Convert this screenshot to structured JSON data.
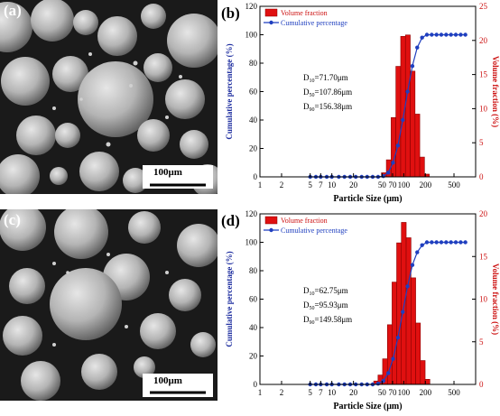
{
  "panels": {
    "a": {
      "letter": "(a)",
      "scale_bar": "100μm"
    },
    "c": {
      "letter": "(c)",
      "scale_bar": "100μm"
    }
  },
  "colors": {
    "bar": "#e01010",
    "line": "#1f3fbf",
    "left_axis": "#1f2fa0",
    "right_axis": "#cc1010"
  },
  "chart_data": [
    {
      "panel": "(b)",
      "type": "bar+line",
      "xlabel": "Particle Size (μm)",
      "ylabel_left": "Cumulative percentage (%)",
      "ylabel_right": "Volume fraction (%)",
      "x_scale": "log",
      "x_ticks": [
        1,
        2,
        5,
        7,
        10,
        20,
        50,
        70,
        100,
        200,
        500
      ],
      "x_tick_labels": [
        "1",
        "2",
        "5",
        "7",
        "10",
        "20",
        "50",
        "70",
        "100",
        "200",
        "500"
      ],
      "xlim": [
        1,
        1000
      ],
      "ylim_left": [
        0,
        120
      ],
      "ylim_right": [
        0,
        25
      ],
      "y_left_ticks": [
        0,
        20,
        40,
        60,
        80,
        100,
        120
      ],
      "y_right_ticks": [
        0,
        5,
        10,
        15,
        20,
        25
      ],
      "legend": [
        "Volume fraction",
        "Cumulative percentage"
      ],
      "annotations": [
        {
          "label": "D",
          "sub": "10",
          "value": "=71.70μm"
        },
        {
          "label": "D",
          "sub": "50",
          "value": "=107.86μm"
        },
        {
          "label": "D",
          "sub": "90",
          "value": "=156.38μm"
        }
      ],
      "bars": [
        {
          "x": 53,
          "value": 0.6
        },
        {
          "x": 62,
          "value": 2.5
        },
        {
          "x": 72,
          "value": 8.7
        },
        {
          "x": 84,
          "value": 16.2
        },
        {
          "x": 98,
          "value": 20.6
        },
        {
          "x": 114,
          "value": 20.8
        },
        {
          "x": 133,
          "value": 15.5
        },
        {
          "x": 155,
          "value": 9.2
        },
        {
          "x": 180,
          "value": 2.9
        },
        {
          "x": 210,
          "value": 0.4
        }
      ],
      "series": [
        {
          "name": "Cumulative percentage",
          "x": [
            5,
            6,
            7,
            8.5,
            10,
            12.5,
            15,
            18,
            21.5,
            26,
            31,
            37,
            44,
            52,
            61,
            71,
            83,
            97,
            113,
            132,
            154,
            180,
            210,
            245,
            286,
            333,
            389,
            454,
            530,
            620,
            720
          ],
          "y": [
            0,
            0,
            0,
            0,
            0,
            0,
            0,
            0,
            0,
            0,
            0,
            0,
            0,
            0.5,
            3,
            10,
            22,
            40,
            60,
            78,
            91,
            98,
            100,
            100,
            100,
            100,
            100,
            100,
            100,
            100,
            100
          ]
        }
      ]
    },
    {
      "panel": "(d)",
      "type": "bar+line",
      "xlabel": "Particle Size (μm)",
      "ylabel_left": "Cumulative percentage (%)",
      "ylabel_right": "Volume fraction (%)",
      "x_scale": "log",
      "x_ticks": [
        1,
        2,
        5,
        7,
        10,
        20,
        50,
        70,
        100,
        200,
        500
      ],
      "x_tick_labels": [
        "1",
        "2",
        "5",
        "7",
        "10",
        "20",
        "50",
        "70",
        "100",
        "200",
        "500"
      ],
      "xlim": [
        1,
        1000
      ],
      "ylim_left": [
        0,
        120
      ],
      "ylim_right": [
        0,
        20
      ],
      "y_left_ticks": [
        0,
        20,
        40,
        60,
        80,
        100,
        120
      ],
      "y_right_ticks": [
        0,
        5,
        10,
        15,
        20
      ],
      "legend": [
        "Volume fraction",
        "Cumulative percentage"
      ],
      "annotations": [
        {
          "label": "D",
          "sub": "10",
          "value": "=62.75μm"
        },
        {
          "label": "D",
          "sub": "50",
          "value": "=95.93μm"
        },
        {
          "label": "D",
          "sub": "90",
          "value": "=149.58μm"
        }
      ],
      "bars": [
        {
          "x": 41,
          "value": 0.4
        },
        {
          "x": 47,
          "value": 1.1
        },
        {
          "x": 55,
          "value": 3.0
        },
        {
          "x": 64,
          "value": 7.0
        },
        {
          "x": 74,
          "value": 12.0
        },
        {
          "x": 86,
          "value": 16.6
        },
        {
          "x": 100,
          "value": 19.0
        },
        {
          "x": 117,
          "value": 17.2
        },
        {
          "x": 136,
          "value": 12.5
        },
        {
          "x": 158,
          "value": 7.2
        },
        {
          "x": 184,
          "value": 2.8
        },
        {
          "x": 214,
          "value": 0.6
        }
      ],
      "series": [
        {
          "name": "Cumulative percentage",
          "x": [
            5,
            6,
            7,
            8.5,
            10,
            12.5,
            15,
            18,
            21.5,
            26,
            31,
            37,
            44,
            52,
            61,
            71,
            83,
            97,
            113,
            132,
            154,
            180,
            210,
            245,
            286,
            333,
            389,
            454,
            530,
            620,
            720
          ],
          "y": [
            0,
            0,
            0,
            0,
            0,
            0,
            0,
            0,
            0,
            0,
            0,
            0,
            0.5,
            2.5,
            8,
            18,
            33,
            51,
            69,
            84,
            93,
            98,
            100,
            100,
            100,
            100,
            100,
            100,
            100,
            100,
            100
          ]
        }
      ]
    }
  ]
}
